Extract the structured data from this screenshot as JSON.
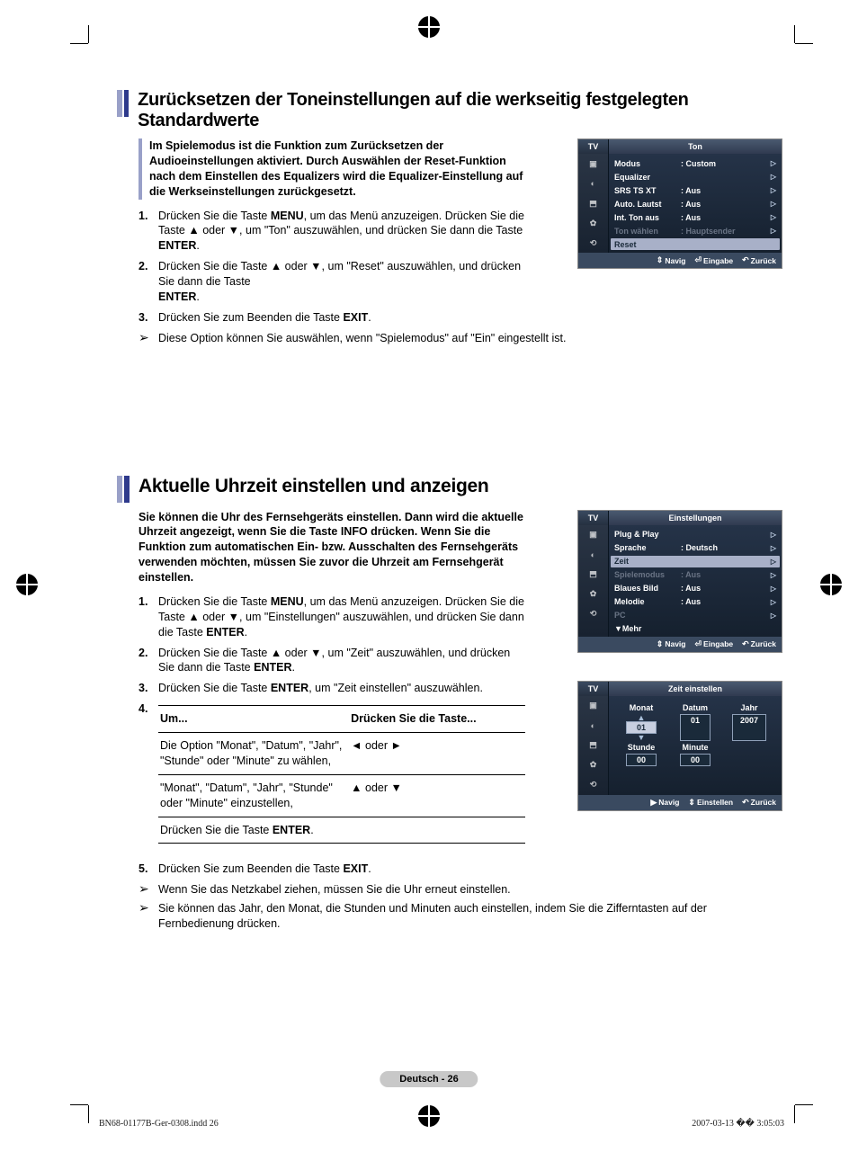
{
  "section1": {
    "title": "Zurücksetzen der Toneinstellungen auf die werkseitig festgelegten Standardwerte",
    "intro": "Im Spielemodus ist die Funktion zum Zurücksetzen der Audioeinstellungen aktiviert. Durch Auswählen der Reset-Funktion nach dem Einstellen des Equalizers wird die Equalizer-Einstellung auf die Werkseinstellungen zurückgesetzt.",
    "steps": {
      "s1a": "Drücken Sie die Taste ",
      "s1m": "MENU",
      "s1b": ", um das Menü anzuzeigen. Drücken Sie die Taste ▲ oder ▼, um \"Ton\" auszuwählen, und drücken Sie dann die Taste ",
      "s1e": "ENTER",
      "s1c": ".",
      "s2a": "Drücken Sie die Taste ▲ oder ▼, um \"Reset\" auszuwählen, und drücken Sie dann die Taste",
      "s2e": "ENTER",
      "s2c": ".",
      "s3a": "Drücken Sie zum Beenden die Taste ",
      "s3e": "EXIT",
      "s3c": "."
    },
    "note": "Diese Option können Sie auswählen, wenn \"Spielemodus\" auf \"Ein\" eingestellt ist."
  },
  "osd_ton": {
    "tv": "TV",
    "title": "Ton",
    "rows": [
      {
        "label": "Modus",
        "val": ": Custom",
        "arrow": "▷"
      },
      {
        "label": "Equalizer",
        "val": "",
        "arrow": "▷"
      },
      {
        "label": "SRS TS XT",
        "val": ": Aus",
        "arrow": "▷"
      },
      {
        "label": "Auto. Lautst",
        "val": ": Aus",
        "arrow": "▷"
      },
      {
        "label": "Int. Ton aus",
        "val": ": Aus",
        "arrow": "▷"
      },
      {
        "label": "Ton wählen",
        "val": ": Hauptsender",
        "arrow": "▷",
        "dim": true
      },
      {
        "label": "Reset",
        "sel": true
      }
    ],
    "footer": {
      "navig": "Navig",
      "eingabe": "Eingabe",
      "zurueck": "Zurück"
    }
  },
  "section2": {
    "title": "Aktuelle Uhrzeit einstellen und anzeigen",
    "intro": "Sie können die Uhr des Fernsehgeräts einstellen. Dann wird die aktuelle Uhrzeit angezeigt, wenn Sie die Taste INFO drücken. Wenn Sie die Funktion zum automatischen Ein- bzw. Ausschalten des Fernsehgeräts verwenden möchten, müssen Sie zuvor die Uhrzeit am Fernsehgerät einstellen.",
    "steps": {
      "s1a": "Drücken Sie die Taste ",
      "s1m": "MENU",
      "s1b": ", um das Menü anzuzeigen. Drücken Sie die Taste ▲ oder ▼, um \"Einstellungen\" auszuwählen, und drücken Sie dann die Taste ",
      "s1e": "ENTER",
      "s1c": ".",
      "s2a": "Drücken Sie die Taste ▲ oder ▼, um \"Zeit\" auszuwählen, und drücken Sie dann die Taste ",
      "s2e": "ENTER",
      "s2c": ".",
      "s3a": "Drücken Sie die Taste ",
      "s3e": "ENTER",
      "s3b": ", um \"Zeit einstellen\" auszuwählen.",
      "s5a": "Drücken Sie zum Beenden die Taste ",
      "s5e": "EXIT",
      "s5c": "."
    },
    "table": {
      "h1": "Um...",
      "h2": "Drücken Sie die Taste...",
      "r1c1": "Die Option \"Monat\", \"Datum\", \"Jahr\", \"Stunde\" oder \"Minute\" zu wählen,",
      "r1c2": "◄ oder ►",
      "r2c1": "\"Monat\", \"Datum\", \"Jahr\", \"Stunde\" oder \"Minute\" einzustellen,",
      "r2c2": "▲ oder ▼",
      "r3c1a": "Drücken Sie die Taste ",
      "r3c1e": "ENTER",
      "r3c1b": "."
    },
    "note1": "Wenn Sie das Netzkabel ziehen, müssen Sie die Uhr erneut einstellen.",
    "note2": "Sie können das Jahr, den Monat, die Stunden und Minuten auch einstellen, indem Sie die Zifferntasten auf der Fernbedienung drücken."
  },
  "osd_einst": {
    "tv": "TV",
    "title": "Einstellungen",
    "rows": [
      {
        "label": "Plug & Play",
        "val": "",
        "arrow": "▷"
      },
      {
        "label": "Sprache",
        "val": ": Deutsch",
        "arrow": "▷"
      },
      {
        "label": "Zeit",
        "sel": true,
        "arrow": "▷"
      },
      {
        "label": "Spielemodus",
        "val": ": Aus",
        "arrow": "▷",
        "dim": true
      },
      {
        "label": "Blaues Bild",
        "val": ": Aus",
        "arrow": "▷"
      },
      {
        "label": "Melodie",
        "val": ": Aus",
        "arrow": "▷"
      },
      {
        "label": "PC",
        "val": "",
        "arrow": "▷",
        "dim": true
      },
      {
        "label": "▼Mehr",
        "val": ""
      }
    ],
    "footer": {
      "navig": "Navig",
      "eingabe": "Eingabe",
      "zurueck": "Zurück"
    }
  },
  "osd_zeit": {
    "tv": "TV",
    "title": "Zeit einstellen",
    "headers": {
      "monat": "Monat",
      "datum": "Datum",
      "jahr": "Jahr",
      "stunde": "Stunde",
      "minute": "Minute"
    },
    "values": {
      "monat": "01",
      "datum": "01",
      "jahr": "2007",
      "stunde": "00",
      "minute": "00"
    },
    "footer": {
      "navig": "Navig",
      "einstellen": "Einstellen",
      "zurueck": "Zurück"
    }
  },
  "page_badge": "Deutsch - 26",
  "footer_left": "BN68-01177B-Ger-0308.indd   26",
  "footer_right": "2007-03-13   �� 3:05:03"
}
